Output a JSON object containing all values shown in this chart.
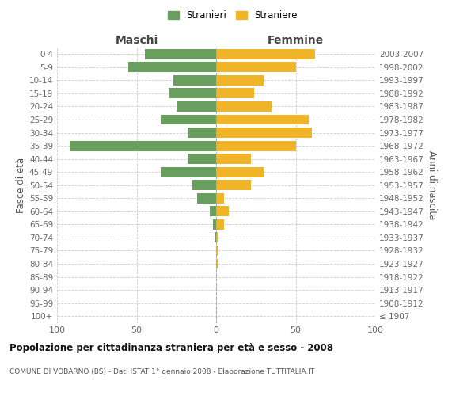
{
  "age_groups": [
    "100+",
    "95-99",
    "90-94",
    "85-89",
    "80-84",
    "75-79",
    "70-74",
    "65-69",
    "60-64",
    "55-59",
    "50-54",
    "45-49",
    "40-44",
    "35-39",
    "30-34",
    "25-29",
    "20-24",
    "15-19",
    "10-14",
    "5-9",
    "0-4"
  ],
  "birth_years": [
    "≤ 1907",
    "1908-1912",
    "1913-1917",
    "1918-1922",
    "1923-1927",
    "1928-1932",
    "1933-1937",
    "1938-1942",
    "1943-1947",
    "1948-1952",
    "1953-1957",
    "1958-1962",
    "1963-1967",
    "1968-1972",
    "1973-1977",
    "1978-1982",
    "1983-1987",
    "1988-1992",
    "1993-1997",
    "1998-2002",
    "2003-2007"
  ],
  "maschi": [
    0,
    0,
    0,
    0,
    0,
    0,
    1,
    2,
    4,
    12,
    15,
    35,
    18,
    92,
    18,
    35,
    25,
    30,
    27,
    55,
    45
  ],
  "femmine": [
    0,
    0,
    0,
    0,
    1,
    1,
    1,
    5,
    8,
    5,
    22,
    30,
    22,
    50,
    60,
    58,
    35,
    24,
    30,
    50,
    62
  ],
  "color_maschi": "#6a9e5e",
  "color_femmine": "#f0b429",
  "title": "Popolazione per cittadinanza straniera per età e sesso - 2008",
  "subtitle": "COMUNE DI VOBARNO (BS) - Dati ISTAT 1° gennaio 2008 - Elaborazione TUTTITALIA.IT",
  "xlabel_left": "Maschi",
  "xlabel_right": "Femmine",
  "ylabel_left": "Fasce di età",
  "ylabel_right": "Anni di nascita",
  "legend_maschi": "Stranieri",
  "legend_femmine": "Straniere",
  "xlim": 100,
  "background_color": "#ffffff",
  "grid_color": "#cccccc"
}
